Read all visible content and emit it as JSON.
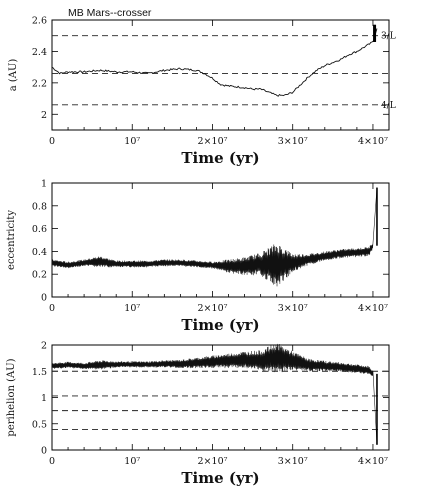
{
  "chart_data": [
    {
      "type": "line",
      "title": "MB Mars--crosser",
      "xlabel": "Time (yr)",
      "ylabel": "a (AU)",
      "xlim": [
        0,
        42000000
      ],
      "ylim": [
        1.9,
        2.6
      ],
      "xticks": [
        0,
        10000000,
        20000000,
        30000000,
        40000000
      ],
      "xtick_labels": [
        "0",
        "10⁷",
        "2×10⁷",
        "3×10⁷",
        "4×10⁷"
      ],
      "yticks": [
        2,
        2.2,
        2.4,
        2.6
      ],
      "ytick_labels": [
        "2",
        "2.2",
        "2.4",
        "2.6"
      ],
      "hlines": [
        {
          "y": 2.5,
          "style": "dashed"
        },
        {
          "y": 2.26,
          "style": "dashed"
        },
        {
          "y": 2.06,
          "style": "dashed"
        }
      ],
      "annotations": [
        {
          "text": "3/L",
          "x": 40500000,
          "y": 2.5
        },
        {
          "text": "4/L",
          "x": 40500000,
          "y": 2.06
        }
      ],
      "x": [
        0,
        1000000,
        2000000,
        4000000,
        6000000,
        8000000,
        10000000,
        12000000,
        14000000,
        16000000,
        18000000,
        19000000,
        20000000,
        21000000,
        22000000,
        24000000,
        25000000,
        26000000,
        27000000,
        28000000,
        29000000,
        30000000,
        31000000,
        32000000,
        33000000,
        34000000,
        35000000,
        36000000,
        37000000,
        38000000,
        39000000,
        40000000,
        40500000
      ],
      "values": [
        2.3,
        2.26,
        2.27,
        2.27,
        2.28,
        2.27,
        2.27,
        2.26,
        2.28,
        2.29,
        2.28,
        2.26,
        2.23,
        2.19,
        2.18,
        2.17,
        2.16,
        2.16,
        2.14,
        2.12,
        2.12,
        2.14,
        2.19,
        2.24,
        2.28,
        2.31,
        2.33,
        2.35,
        2.38,
        2.4,
        2.43,
        2.46,
        2.55
      ]
    },
    {
      "type": "line",
      "title": "",
      "xlabel": "Time (yr)",
      "ylabel": "eccentricity",
      "xlim": [
        0,
        42000000
      ],
      "ylim": [
        0,
        1
      ],
      "xticks": [
        0,
        10000000,
        20000000,
        30000000,
        40000000
      ],
      "xtick_labels": [
        "0",
        "10⁷",
        "2×10⁷",
        "3×10⁷",
        "4×10⁷"
      ],
      "yticks": [
        0,
        0.2,
        0.4,
        0.6,
        0.8,
        1
      ],
      "ytick_labels": [
        "0",
        "0.2",
        "0.4",
        "0.6",
        "0.8",
        "1"
      ],
      "x": [
        0,
        2000000,
        4000000,
        6000000,
        8000000,
        10000000,
        12000000,
        14000000,
        16000000,
        18000000,
        20000000,
        22000000,
        24000000,
        26000000,
        28000000,
        30000000,
        32000000,
        34000000,
        36000000,
        38000000,
        39500000,
        40000000,
        40500000
      ],
      "values": [
        0.3,
        0.28,
        0.3,
        0.31,
        0.29,
        0.29,
        0.29,
        0.3,
        0.3,
        0.29,
        0.28,
        0.27,
        0.27,
        0.29,
        0.28,
        0.3,
        0.33,
        0.36,
        0.38,
        0.39,
        0.4,
        0.45,
        0.96
      ],
      "oscillation_amplitude": [
        0.03,
        0.03,
        0.03,
        0.05,
        0.03,
        0.03,
        0.03,
        0.03,
        0.03,
        0.03,
        0.03,
        0.06,
        0.08,
        0.1,
        0.2,
        0.08,
        0.05,
        0.04,
        0.04,
        0.04,
        0.04,
        0.03,
        0.0
      ]
    },
    {
      "type": "line",
      "title": "",
      "xlabel": "Time (yr)",
      "ylabel": "perihelion (AU)",
      "xlim": [
        0,
        42000000
      ],
      "ylim": [
        0,
        2
      ],
      "xticks": [
        0,
        10000000,
        20000000,
        30000000,
        40000000
      ],
      "xtick_labels": [
        "0",
        "10⁷",
        "2×10⁷",
        "3×10⁷",
        "4×10⁷"
      ],
      "yticks": [
        0,
        0.5,
        1,
        1.5,
        2
      ],
      "ytick_labels": [
        "0",
        "0.5",
        "1",
        "1.5",
        "2"
      ],
      "hlines": [
        {
          "y": 1.5,
          "style": "dashed"
        },
        {
          "y": 1.03,
          "style": "dashed"
        },
        {
          "y": 0.75,
          "style": "dashed"
        },
        {
          "y": 0.39,
          "style": "dashed"
        }
      ],
      "x": [
        0,
        2000000,
        4000000,
        6000000,
        8000000,
        10000000,
        12000000,
        14000000,
        16000000,
        18000000,
        20000000,
        22000000,
        24000000,
        26000000,
        28000000,
        30000000,
        32000000,
        34000000,
        36000000,
        38000000,
        39500000,
        40000000,
        40500000
      ],
      "values": [
        1.6,
        1.62,
        1.6,
        1.62,
        1.63,
        1.63,
        1.63,
        1.64,
        1.64,
        1.66,
        1.68,
        1.7,
        1.72,
        1.7,
        1.75,
        1.7,
        1.62,
        1.6,
        1.58,
        1.55,
        1.52,
        1.45,
        0.1
      ],
      "oscillation_amplitude": [
        0.06,
        0.06,
        0.06,
        0.09,
        0.06,
        0.06,
        0.06,
        0.07,
        0.08,
        0.1,
        0.12,
        0.14,
        0.16,
        0.2,
        0.3,
        0.18,
        0.12,
        0.1,
        0.09,
        0.08,
        0.08,
        0.06,
        0.0
      ]
    }
  ]
}
